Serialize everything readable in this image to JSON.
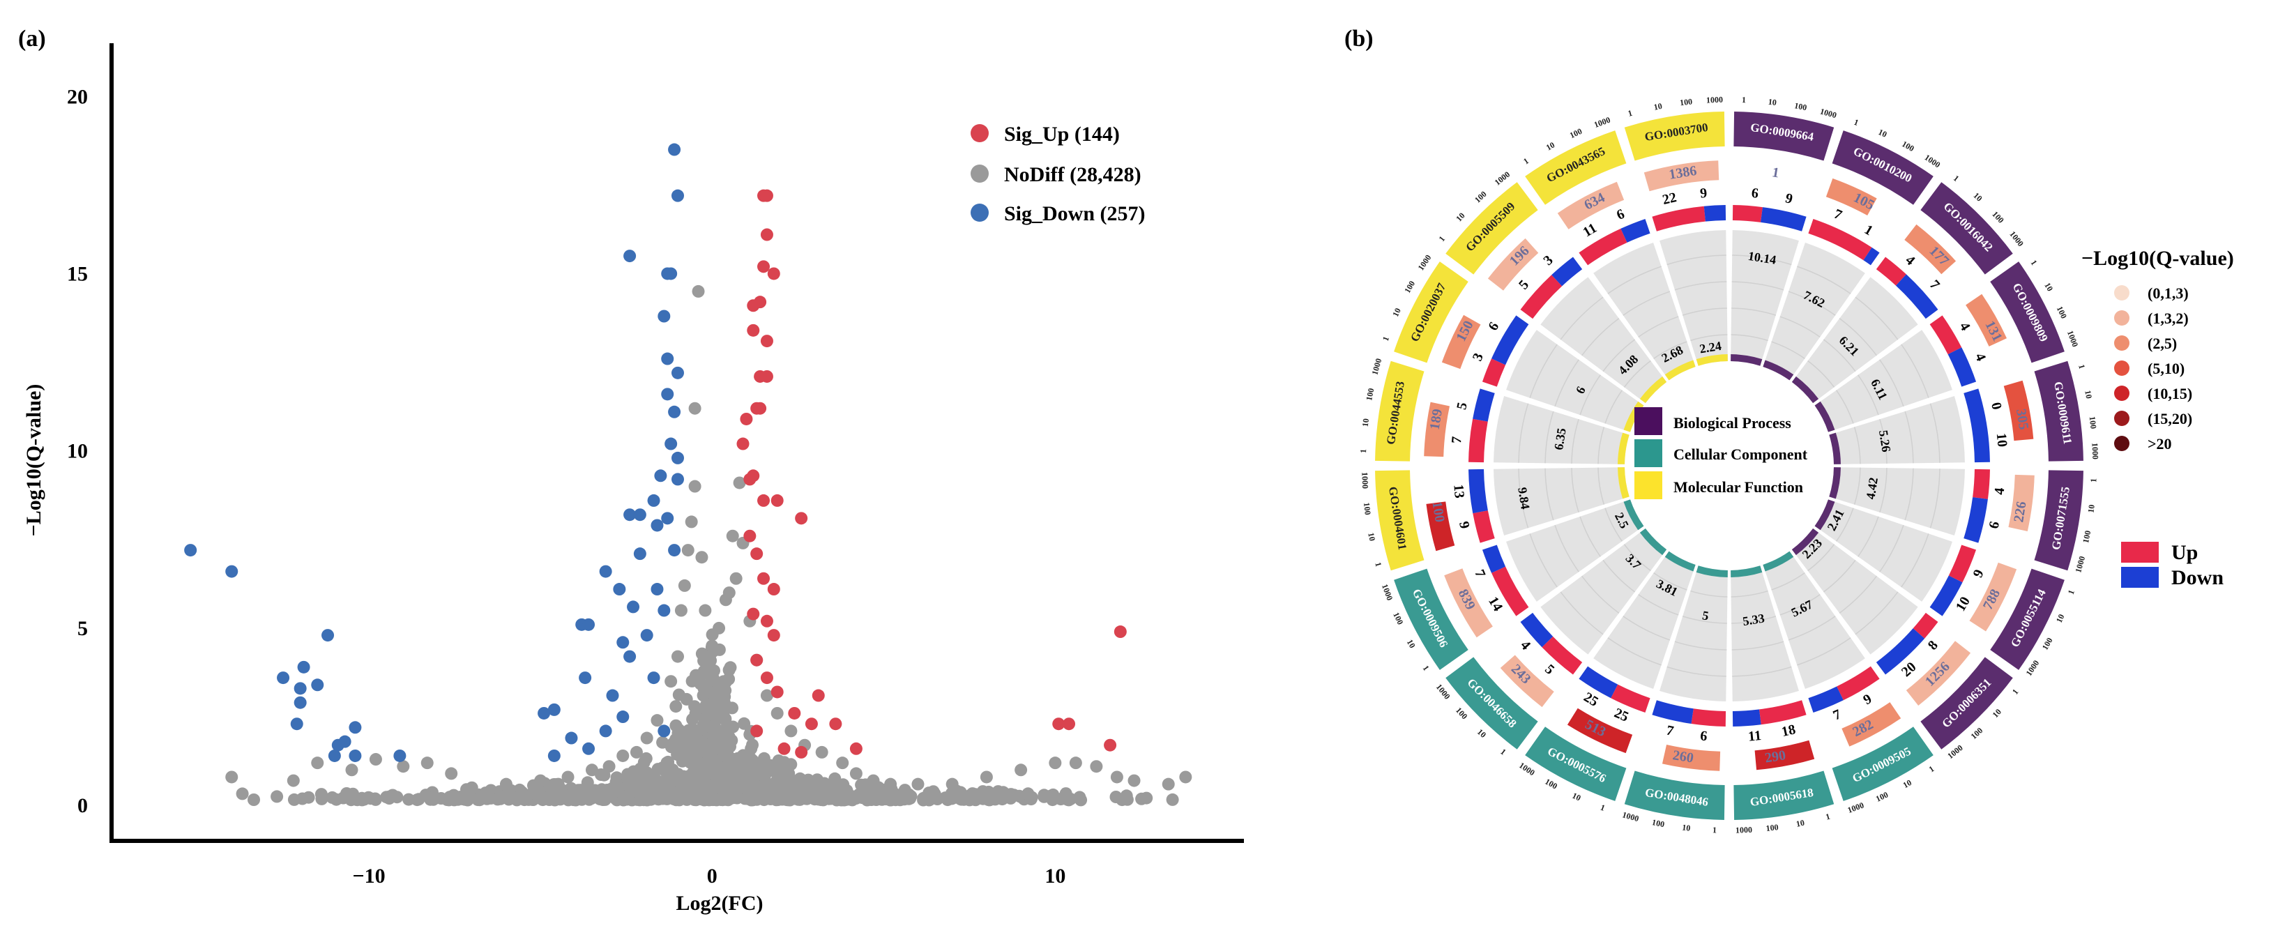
{
  "panels": {
    "a": "(a)",
    "b": "(b)"
  },
  "chart_data": [
    {
      "type": "scatter",
      "title": "",
      "xlabel": "Log2(FC)",
      "ylabel": "−Log10(Q-value)",
      "xlim": [
        -17.5,
        15.5
      ],
      "ylim": [
        -1,
        21.5
      ],
      "x_ticks": [
        -10,
        0,
        10
      ],
      "x_tick_labels": [
        "−10",
        "0",
        "10"
      ],
      "y_ticks": [
        0,
        5,
        10,
        15,
        20
      ],
      "y_tick_labels": [
        "0",
        "5",
        "10",
        "15",
        "20"
      ],
      "legend_position": "top-right",
      "series": [
        {
          "name": "Sig_Up",
          "label": "Sig_Up (144)",
          "count": 144,
          "color": "#D9434F"
        },
        {
          "name": "NoDiff",
          "label": "NoDiff (28,428)",
          "count": 28428,
          "color": "#9A9A9A"
        },
        {
          "name": "Sig_Down",
          "label": "Sig_Down (257)",
          "count": 257,
          "color": "#3C6FB5"
        }
      ],
      "nodiff_points": [
        [
          -14,
          0.8
        ],
        [
          -12.2,
          0.7
        ],
        [
          -11.5,
          1.2
        ],
        [
          -10.5,
          1
        ],
        [
          -9.8,
          1.3
        ],
        [
          -9,
          1.1
        ],
        [
          -8.3,
          1.2
        ],
        [
          -7.6,
          0.9
        ],
        [
          -7,
          0.5
        ],
        [
          -6,
          0.6
        ],
        [
          -5,
          0.7
        ],
        [
          -4.2,
          0.8
        ],
        [
          -3.5,
          1
        ],
        [
          -3,
          1.1
        ],
        [
          -2.6,
          1.4
        ],
        [
          -2.2,
          1.5
        ],
        [
          -1.9,
          1.9
        ],
        [
          -1.6,
          2.4
        ],
        [
          -1.2,
          3.5
        ],
        [
          -1,
          4.2
        ],
        [
          -0.9,
          5.5
        ],
        [
          -0.8,
          6.2
        ],
        [
          -0.7,
          7.2
        ],
        [
          -0.6,
          8
        ],
        [
          -0.5,
          9
        ],
        [
          -0.5,
          11.2
        ],
        [
          -0.4,
          14.5
        ],
        [
          -0.3,
          7
        ],
        [
          -0.2,
          5.5
        ],
        [
          0,
          4.5
        ],
        [
          0.2,
          5
        ],
        [
          0.4,
          5.8
        ],
        [
          0.5,
          6
        ],
        [
          0.6,
          7.6
        ],
        [
          0.7,
          6.4
        ],
        [
          0.8,
          9.1
        ],
        [
          0.9,
          7.4
        ],
        [
          1.1,
          5.2
        ],
        [
          1.3,
          4.1
        ],
        [
          1.6,
          3.1
        ],
        [
          1.9,
          2.6
        ],
        [
          2.3,
          2.1
        ],
        [
          2.7,
          1.7
        ],
        [
          3.2,
          1.5
        ],
        [
          3.8,
          1.2
        ],
        [
          4.2,
          0.9
        ],
        [
          4.7,
          0.7
        ],
        [
          5.2,
          0.6
        ],
        [
          6,
          0.6
        ],
        [
          7,
          0.6
        ],
        [
          8,
          0.8
        ],
        [
          9,
          1
        ],
        [
          10,
          1.2
        ],
        [
          10.6,
          1.2
        ],
        [
          11.2,
          1.1
        ],
        [
          11.8,
          0.8
        ],
        [
          12.3,
          0.7
        ],
        [
          13.3,
          0.6
        ],
        [
          13.8,
          0.8
        ]
      ],
      "sig_up_points": [
        [
          1.5,
          17.2
        ],
        [
          1.6,
          17.2
        ],
        [
          1.6,
          16.1
        ],
        [
          1.5,
          15.2
        ],
        [
          1.8,
          15
        ],
        [
          1.2,
          14.1
        ],
        [
          1.4,
          14.2
        ],
        [
          1.2,
          13.4
        ],
        [
          1.6,
          13.1
        ],
        [
          1.6,
          12.1
        ],
        [
          1.4,
          12.1
        ],
        [
          1.4,
          11.2
        ],
        [
          0.9,
          10.2
        ],
        [
          1.0,
          10.9
        ],
        [
          1.3,
          11.2
        ],
        [
          1.1,
          9.2
        ],
        [
          1.2,
          9.3
        ],
        [
          1.5,
          8.6
        ],
        [
          1.9,
          8.6
        ],
        [
          2.6,
          8.1
        ],
        [
          1.1,
          7.6
        ],
        [
          1.3,
          7.1
        ],
        [
          1.5,
          6.4
        ],
        [
          1.8,
          6.1
        ],
        [
          1.2,
          5.4
        ],
        [
          1.6,
          5.2
        ],
        [
          1.8,
          4.8
        ],
        [
          1.3,
          4.1
        ],
        [
          1.6,
          3.6
        ],
        [
          1.9,
          3.2
        ],
        [
          3.1,
          3.1
        ],
        [
          2.4,
          2.6
        ],
        [
          2.9,
          2.3
        ],
        [
          3.6,
          2.3
        ],
        [
          1.3,
          2.1
        ],
        [
          2.1,
          1.6
        ],
        [
          2.6,
          1.5
        ],
        [
          4.2,
          1.6
        ],
        [
          11.9,
          4.9
        ],
        [
          10.1,
          2.3
        ],
        [
          10.4,
          2.3
        ],
        [
          11.6,
          1.7
        ]
      ],
      "sig_down_points": [
        [
          -1.1,
          18.5
        ],
        [
          -1.0,
          17.2
        ],
        [
          -1.3,
          15
        ],
        [
          -1.2,
          15
        ],
        [
          -2.4,
          15.5
        ],
        [
          -1.4,
          13.8
        ],
        [
          -1.3,
          12.6
        ],
        [
          -1.0,
          12.2
        ],
        [
          -1.3,
          11.6
        ],
        [
          -1.1,
          11.1
        ],
        [
          -1.2,
          10.2
        ],
        [
          -1.0,
          9.8
        ],
        [
          -1.5,
          9.3
        ],
        [
          -1.0,
          9.2
        ],
        [
          -1.7,
          8.6
        ],
        [
          -2.1,
          8.2
        ],
        [
          -2.4,
          8.2
        ],
        [
          -1.3,
          8.1
        ],
        [
          -1.6,
          7.9
        ],
        [
          -1.1,
          7.2
        ],
        [
          -2.1,
          7.1
        ],
        [
          -3.1,
          6.6
        ],
        [
          -2.7,
          6.1
        ],
        [
          -1.6,
          6.1
        ],
        [
          -1.4,
          5.5
        ],
        [
          -2.3,
          5.6
        ],
        [
          -3.8,
          5.1
        ],
        [
          -3.6,
          5.1
        ],
        [
          -2.6,
          4.6
        ],
        [
          -1.9,
          4.8
        ],
        [
          -2.4,
          4.2
        ],
        [
          -3.7,
          3.6
        ],
        [
          -1.7,
          3.6
        ],
        [
          -2.9,
          3.1
        ],
        [
          -4.6,
          2.7
        ],
        [
          -4.9,
          2.6
        ],
        [
          -2.6,
          2.5
        ],
        [
          -3.1,
          2.1
        ],
        [
          -4.1,
          1.9
        ],
        [
          -3.6,
          1.6
        ],
        [
          -1.4,
          2.1
        ],
        [
          -4.6,
          1.4
        ],
        [
          -15.2,
          7.2
        ],
        [
          -14,
          6.6
        ],
        [
          -11.2,
          4.8
        ],
        [
          -11.9,
          3.9
        ],
        [
          -12.5,
          3.6
        ],
        [
          -11.5,
          3.4
        ],
        [
          -12.0,
          3.3
        ],
        [
          -12.0,
          2.9
        ],
        [
          -12.1,
          2.3
        ],
        [
          -10.4,
          2.2
        ],
        [
          -10.7,
          1.8
        ],
        [
          -10.9,
          1.7
        ],
        [
          -9.1,
          1.4
        ],
        [
          -10.4,
          1.4
        ],
        [
          -11,
          1.4
        ]
      ]
    },
    {
      "type": "circos",
      "title": "",
      "sectors": [
        {
          "id": "GO:0009664",
          "category": "BP",
          "count": 1,
          "up": 6,
          "down": 9,
          "rich_factor": "10.14",
          "qbin": 6
        },
        {
          "id": "GO:0010200",
          "category": "BP",
          "count": 105,
          "up": 7,
          "down": 1,
          "rich_factor": "7.62",
          "qbin": 2
        },
        {
          "id": "GO:0016042",
          "category": "BP",
          "count": 177,
          "up": 4,
          "down": 7,
          "rich_factor": "6.21",
          "qbin": 2
        },
        {
          "id": "GO:0009809",
          "category": "BP",
          "count": 131,
          "up": 4,
          "down": 4,
          "rich_factor": "6.11",
          "qbin": 2
        },
        {
          "id": "GO:0009611",
          "category": "BP",
          "count": 305,
          "up": 0,
          "down": 10,
          "rich_factor": "5.26",
          "qbin": 3
        },
        {
          "id": "GO:0071555",
          "category": "BP",
          "count": 226,
          "up": 4,
          "down": 6,
          "rich_factor": "4.42",
          "qbin": 1
        },
        {
          "id": "GO:0055114",
          "category": "BP",
          "count": 788,
          "up": 9,
          "down": 10,
          "rich_factor": "2.41",
          "qbin": 1
        },
        {
          "id": "GO:0006351",
          "category": "BP",
          "count": 1256,
          "up": 8,
          "down": 20,
          "rich_factor": "2.23",
          "qbin": 1
        },
        {
          "id": "GO:0009505",
          "category": "CC",
          "count": 282,
          "up": 9,
          "down": 7,
          "rich_factor": "5.67",
          "qbin": 2
        },
        {
          "id": "GO:0005618",
          "category": "CC",
          "count": 290,
          "up": 18,
          "down": 11,
          "rich_factor": "5.33",
          "qbin": 4
        },
        {
          "id": "GO:0048046",
          "category": "CC",
          "count": 260,
          "up": 6,
          "down": 7,
          "rich_factor": "5",
          "qbin": 2
        },
        {
          "id": "GO:0005576",
          "category": "CC",
          "count": 513,
          "up": 25,
          "down": 25,
          "rich_factor": "3.81",
          "qbin": 4
        },
        {
          "id": "GO:0046658",
          "category": "CC",
          "count": 243,
          "up": 5,
          "down": 4,
          "rich_factor": "3.7",
          "qbin": 1
        },
        {
          "id": "GO:0009506",
          "category": "CC",
          "count": 839,
          "up": 14,
          "down": 7,
          "rich_factor": "2.5",
          "qbin": 1
        },
        {
          "id": "GO:0004601",
          "category": "MF",
          "count": 100,
          "up": 9,
          "down": 13,
          "rich_factor": "9.84",
          "qbin": 4
        },
        {
          "id": "GO:0044553",
          "category": "MF",
          "count": 189,
          "up": 7,
          "down": 5,
          "rich_factor": "6.35",
          "qbin": 2
        },
        {
          "id": "GO:0020037",
          "category": "MF",
          "count": 150,
          "up": 3,
          "down": 6,
          "rich_factor": "6",
          "qbin": 2
        },
        {
          "id": "GO:0005509",
          "category": "MF",
          "count": 196,
          "up": 5,
          "down": 3,
          "rich_factor": "4.08",
          "qbin": 1
        },
        {
          "id": "GO:0043565",
          "category": "MF",
          "count": 634,
          "up": 11,
          "down": 6,
          "rich_factor": "2.68",
          "qbin": 1
        },
        {
          "id": "GO:0003700",
          "category": "MF",
          "count": 1386,
          "up": 22,
          "down": 9,
          "rich_factor": "2.24",
          "qbin": 1
        }
      ],
      "count_ticks": [
        "1",
        "10",
        "100",
        "1000"
      ],
      "category_legend": [
        {
          "key": "BP",
          "label": "Biological Process",
          "color": "#4B0F5E"
        },
        {
          "key": "CC",
          "label": "Cellular Component",
          "color": "#2C978E"
        },
        {
          "key": "MF",
          "label": "Molecular Function",
          "color": "#FCE32C"
        }
      ],
      "ring_colors": {
        "BP": "#5B2D6E",
        "CC": "#3A9A92",
        "MF": "#F4E33A"
      },
      "qvalue_legend_title": "−Log10(Q-value)",
      "qvalue_legend": [
        {
          "label": "(0,1,3)",
          "color": "#F8DCCB"
        },
        {
          "label": "(1,3,2)",
          "color": "#F2B39B"
        },
        {
          "label": "(2,5)",
          "color": "#EE8E6E"
        },
        {
          "label": "(5,10)",
          "color": "#E4523F"
        },
        {
          "label": "(10,15)",
          "color": "#CE2428"
        },
        {
          "label": "(15,20)",
          "color": "#9C1A1C"
        },
        {
          "label": ">20",
          "color": "#5E0C10"
        }
      ],
      "updown_legend": [
        {
          "label": "Up",
          "color": "#E8294A"
        },
        {
          "label": "Down",
          "color": "#1C3FD4"
        }
      ]
    }
  ]
}
